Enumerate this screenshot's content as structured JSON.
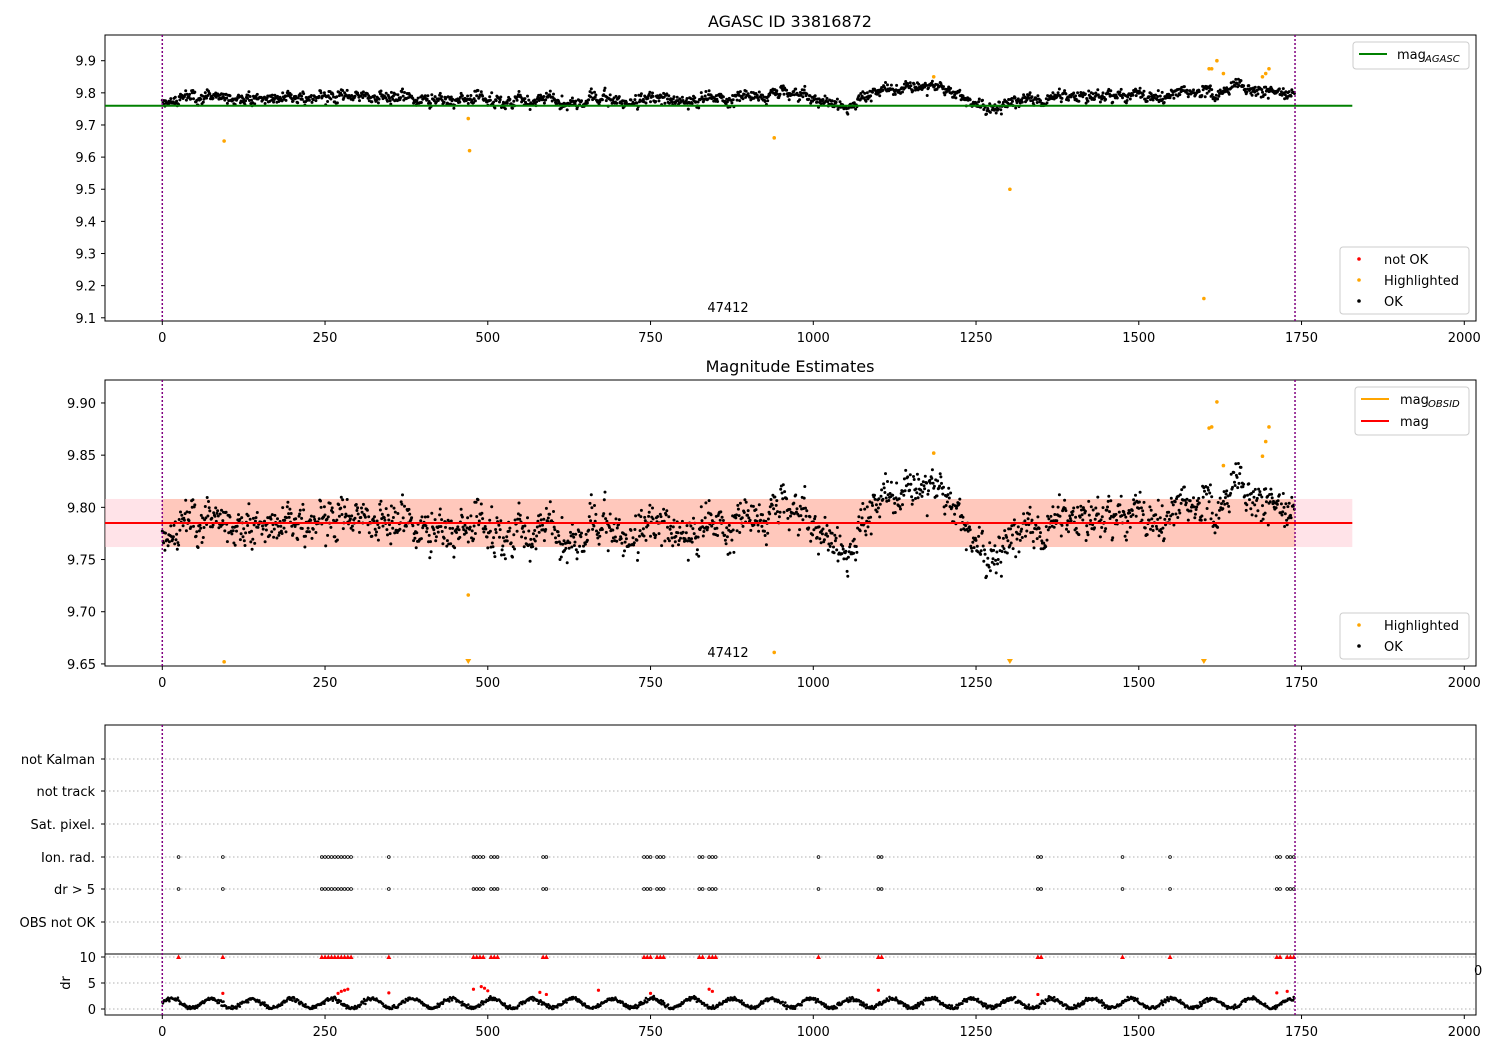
{
  "chart_data": [
    {
      "type": "scatter",
      "title": "AGASC ID 33816872",
      "annotation": "47412",
      "x_ticks": [
        "0",
        "250",
        "500",
        "750",
        "1000",
        "1250",
        "1500",
        "1750",
        "2000"
      ],
      "y_ticks": [
        "9.1",
        "9.2",
        "9.3",
        "9.4",
        "9.5",
        "9.6",
        "9.7",
        "9.8",
        "9.9"
      ],
      "xlim": [
        -88,
        2018
      ],
      "ylim": [
        9.09,
        9.98
      ],
      "vlines_x": [
        0,
        1740
      ],
      "hline": {
        "y": 9.76,
        "x_range": [
          -88,
          1828
        ],
        "color": "#008000"
      },
      "series_seed": 11,
      "ok_trend": [
        [
          0,
          9.78
        ],
        [
          250,
          9.785
        ],
        [
          500,
          9.78
        ],
        [
          700,
          9.775
        ],
        [
          860,
          9.78
        ],
        [
          950,
          9.8
        ],
        [
          1050,
          9.76
        ],
        [
          1110,
          9.815
        ],
        [
          1200,
          9.81
        ],
        [
          1270,
          9.75
        ],
        [
          1330,
          9.78
        ],
        [
          1500,
          9.79
        ],
        [
          1600,
          9.8
        ],
        [
          1650,
          9.82
        ],
        [
          1740,
          9.8
        ]
      ],
      "ok_noise": 0.018,
      "ok_points": 1740,
      "highlighted": [
        [
          95,
          9.65
        ],
        [
          470,
          9.72
        ],
        [
          472,
          9.62
        ],
        [
          940,
          9.66
        ],
        [
          1185,
          9.85
        ],
        [
          1302,
          9.5
        ],
        [
          1600,
          9.16
        ],
        [
          1608,
          9.875
        ],
        [
          1612,
          9.875
        ],
        [
          1620,
          9.9
        ],
        [
          1630,
          9.86
        ],
        [
          1690,
          9.85
        ],
        [
          1695,
          9.86
        ],
        [
          1700,
          9.875
        ]
      ],
      "legend_line": {
        "label": "mag",
        "sub": "AGASC",
        "color": "#008000"
      },
      "legend": [
        {
          "label": "not OK",
          "color": "#ff0000"
        },
        {
          "label": "Highlighted",
          "color": "#ffa500"
        },
        {
          "label": "OK",
          "color": "#000000"
        }
      ]
    },
    {
      "type": "scatter",
      "title": "Magnitude Estimates",
      "annotation": "47412",
      "x_ticks": [
        "0",
        "250",
        "500",
        "750",
        "1000",
        "1250",
        "1500",
        "1750",
        "2000"
      ],
      "y_ticks": [
        "9.65",
        "9.70",
        "9.75",
        "9.80",
        "9.85",
        "9.90"
      ],
      "xlim": [
        -88,
        2018
      ],
      "ylim": [
        9.648,
        9.922
      ],
      "vlines_x": [
        0,
        1740
      ],
      "mag_line": {
        "y": 9.785,
        "color": "#ff0000"
      },
      "band_obsid": {
        "y_range": [
          9.762,
          9.808
        ],
        "x_range": [
          0,
          1740
        ],
        "color": "#ffa07a"
      },
      "band_total": {
        "y_range": [
          9.762,
          9.808
        ],
        "x_range": [
          -88,
          1828
        ],
        "color": "#ffc0cb"
      },
      "highlighted": [
        [
          95,
          9.652
        ],
        [
          470,
          9.716
        ],
        [
          940,
          9.661
        ],
        [
          1185,
          9.852
        ],
        [
          1608,
          9.876
        ],
        [
          1612,
          9.877
        ],
        [
          1620,
          9.901
        ],
        [
          1630,
          9.84
        ],
        [
          1690,
          9.849
        ],
        [
          1695,
          9.863
        ],
        [
          1700,
          9.877
        ]
      ],
      "lower_markers_x": [
        470,
        1302,
        1600
      ],
      "legend_lines": [
        {
          "label": "mag",
          "sub": "OBSID",
          "color": "#ffa500"
        },
        {
          "label": "mag",
          "sub": "",
          "color": "#ff0000"
        }
      ],
      "legend": [
        {
          "label": "Highlighted",
          "color": "#ffa500"
        },
        {
          "label": "OK",
          "color": "#000000"
        }
      ]
    },
    {
      "type": "scatter",
      "xlabel": "",
      "x_ticks": [
        "0",
        "250",
        "500",
        "750",
        "1000",
        "1250",
        "1500",
        "1750",
        "2000"
      ],
      "xlim": [
        -88,
        2018
      ],
      "flag_rows": [
        "not Kalman",
        "not track",
        "Sat. pixel.",
        "Ion. rad.",
        "dr > 5",
        "OBS not OK"
      ],
      "flag_x": [
        25,
        93,
        245,
        250,
        255,
        260,
        265,
        270,
        275,
        280,
        285,
        290,
        348,
        478,
        483,
        488,
        493,
        505,
        510,
        515,
        585,
        590,
        740,
        745,
        750,
        760,
        765,
        770,
        825,
        830,
        840,
        845,
        850,
        1008,
        1100,
        1105,
        1345,
        1350,
        1475,
        1548,
        1712,
        1717,
        1728,
        1733,
        1738
      ],
      "flag_marked_rows": [
        "Ion. rad.",
        "dr > 5"
      ],
      "dr": {
        "ylabel": "dr",
        "y_ticks": [
          "0",
          "5",
          "10"
        ],
        "ylim": [
          -0.5,
          10.5
        ],
        "clip_value": 10,
        "clipped_x": [
          25,
          93,
          245,
          250,
          255,
          260,
          265,
          270,
          275,
          280,
          285,
          290,
          348,
          478,
          483,
          488,
          493,
          505,
          510,
          515,
          585,
          590,
          740,
          745,
          750,
          760,
          765,
          770,
          825,
          830,
          840,
          845,
          850,
          1008,
          1100,
          1105,
          1345,
          1350,
          1475,
          1548,
          1712,
          1717,
          1728,
          1733,
          1738
        ],
        "red_points": [
          [
            93,
            3.0
          ],
          [
            270,
            3.0
          ],
          [
            275,
            3.4
          ],
          [
            280,
            3.6
          ],
          [
            285,
            3.8
          ],
          [
            348,
            3.1
          ],
          [
            478,
            3.8
          ],
          [
            490,
            4.3
          ],
          [
            495,
            4.0
          ],
          [
            500,
            3.5
          ],
          [
            580,
            3.2
          ],
          [
            590,
            2.8
          ],
          [
            670,
            3.6
          ],
          [
            750,
            3.0
          ],
          [
            840,
            3.8
          ],
          [
            845,
            3.4
          ],
          [
            1100,
            3.6
          ],
          [
            1345,
            2.8
          ],
          [
            1712,
            3.1
          ],
          [
            1728,
            3.4
          ]
        ]
      }
    }
  ]
}
